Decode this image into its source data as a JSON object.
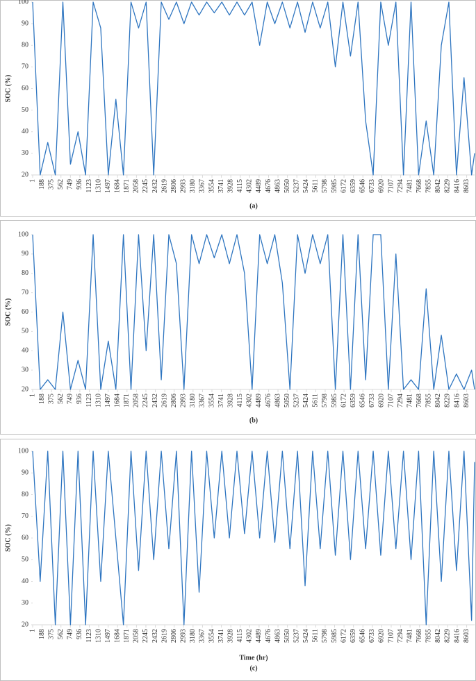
{
  "chart_data": [
    {
      "type": "line",
      "caption": "(a)",
      "ylabel": "SOC (%)",
      "xlim": [
        1,
        8760
      ],
      "ylim": [
        20,
        100
      ],
      "yticks": [
        20,
        30,
        40,
        50,
        60,
        70,
        80,
        90,
        100
      ],
      "xticks": [
        1,
        188,
        375,
        562,
        749,
        936,
        1123,
        1310,
        1497,
        1684,
        1871,
        2058,
        2245,
        2432,
        2619,
        2806,
        2993,
        3180,
        3367,
        3554,
        3741,
        3928,
        4115,
        4302,
        4489,
        4676,
        4863,
        5050,
        5237,
        5424,
        5611,
        5798,
        5985,
        6172,
        6359,
        6546,
        6733,
        6920,
        7107,
        7294,
        7481,
        7668,
        7855,
        8042,
        8229,
        8416,
        8603
      ],
      "series": [
        {
          "color": "#2e75c0",
          "x": [
            1,
            150,
            300,
            450,
            600,
            750,
            900,
            1050,
            1200,
            1350,
            1500,
            1650,
            1800,
            1950,
            2100,
            2250,
            2400,
            2550,
            2700,
            2850,
            3000,
            3150,
            3300,
            3450,
            3600,
            3750,
            3900,
            4050,
            4200,
            4350,
            4500,
            4650,
            4800,
            4950,
            5100,
            5250,
            5400,
            5550,
            5700,
            5850,
            6000,
            6150,
            6300,
            6450,
            6600,
            6750,
            6900,
            7050,
            7200,
            7350,
            7500,
            7650,
            7800,
            7950,
            8100,
            8250,
            8400,
            8550,
            8700,
            8760
          ],
          "values": [
            100,
            20,
            35,
            20,
            100,
            25,
            40,
            20,
            100,
            88,
            20,
            55,
            20,
            100,
            88,
            100,
            20,
            100,
            92,
            100,
            90,
            100,
            94,
            100,
            95,
            100,
            94,
            100,
            94,
            100,
            80,
            100,
            90,
            100,
            88,
            100,
            86,
            100,
            88,
            100,
            70,
            100,
            75,
            100,
            45,
            20,
            100,
            80,
            100,
            20,
            100,
            20,
            45,
            20,
            80,
            100,
            20,
            65,
            20,
            30
          ]
        }
      ]
    },
    {
      "type": "line",
      "caption": "(b)",
      "ylabel": "SOC (%)",
      "xlim": [
        1,
        8760
      ],
      "ylim": [
        20,
        100
      ],
      "yticks": [
        20,
        30,
        40,
        50,
        60,
        70,
        80,
        90,
        100
      ],
      "xticks": [
        1,
        188,
        375,
        562,
        749,
        936,
        1123,
        1310,
        1497,
        1684,
        1871,
        2058,
        2245,
        2432,
        2619,
        2806,
        2993,
        3180,
        3367,
        3554,
        3741,
        3928,
        4115,
        4302,
        4489,
        4676,
        4863,
        5050,
        5237,
        5424,
        5611,
        5798,
        5985,
        6172,
        6359,
        6546,
        6733,
        6920,
        7107,
        7294,
        7481,
        7668,
        7855,
        8042,
        8229,
        8416,
        8603
      ],
      "series": [
        {
          "color": "#2e75c0",
          "x": [
            1,
            150,
            300,
            450,
            600,
            750,
            900,
            1050,
            1200,
            1350,
            1500,
            1650,
            1800,
            1950,
            2100,
            2250,
            2400,
            2550,
            2700,
            2850,
            3000,
            3150,
            3300,
            3450,
            3600,
            3750,
            3900,
            4050,
            4200,
            4350,
            4500,
            4650,
            4800,
            4950,
            5100,
            5250,
            5400,
            5550,
            5700,
            5850,
            6000,
            6150,
            6300,
            6450,
            6600,
            6750,
            6900,
            7050,
            7200,
            7350,
            7500,
            7650,
            7800,
            7950,
            8100,
            8250,
            8400,
            8550,
            8700,
            8760
          ],
          "values": [
            100,
            20,
            25,
            20,
            60,
            20,
            35,
            20,
            100,
            20,
            45,
            20,
            100,
            20,
            100,
            40,
            100,
            25,
            100,
            85,
            20,
            100,
            85,
            100,
            88,
            100,
            85,
            100,
            80,
            20,
            100,
            85,
            100,
            75,
            20,
            100,
            80,
            100,
            85,
            100,
            20,
            100,
            20,
            100,
            25,
            100,
            100,
            20,
            90,
            20,
            25,
            20,
            72,
            20,
            48,
            20,
            28,
            20,
            30,
            20
          ]
        }
      ]
    },
    {
      "type": "line",
      "caption": "(c)",
      "ylabel": "SOC (%)",
      "xlabel": "Time (hr)",
      "xlim": [
        1,
        8760
      ],
      "ylim": [
        20,
        100
      ],
      "yticks": [
        20,
        30,
        40,
        50,
        60,
        70,
        80,
        90,
        100
      ],
      "xticks": [
        1,
        188,
        375,
        562,
        749,
        936,
        1123,
        1310,
        1497,
        1684,
        1871,
        2058,
        2245,
        2432,
        2619,
        2806,
        2993,
        3180,
        3367,
        3554,
        3741,
        3928,
        4115,
        4302,
        4489,
        4676,
        4863,
        5050,
        5237,
        5424,
        5611,
        5798,
        5985,
        6172,
        6359,
        6546,
        6733,
        6920,
        7107,
        7294,
        7481,
        7668,
        7855,
        8042,
        8229,
        8416,
        8603
      ],
      "series": [
        {
          "color": "#2e75c0",
          "x": [
            1,
            150,
            300,
            450,
            600,
            750,
            900,
            1050,
            1200,
            1350,
            1500,
            1650,
            1800,
            1950,
            2100,
            2250,
            2400,
            2550,
            2700,
            2850,
            3000,
            3150,
            3300,
            3450,
            3600,
            3750,
            3900,
            4050,
            4200,
            4350,
            4500,
            4650,
            4800,
            4950,
            5100,
            5250,
            5400,
            5550,
            5700,
            5850,
            6000,
            6150,
            6300,
            6450,
            6600,
            6750,
            6900,
            7050,
            7200,
            7350,
            7500,
            7650,
            7800,
            7950,
            8100,
            8250,
            8400,
            8550,
            8700,
            8760
          ],
          "values": [
            100,
            40,
            100,
            20,
            100,
            20,
            100,
            20,
            100,
            40,
            100,
            60,
            20,
            100,
            45,
            100,
            50,
            100,
            55,
            100,
            20,
            100,
            35,
            100,
            60,
            100,
            60,
            100,
            62,
            100,
            60,
            100,
            58,
            100,
            55,
            100,
            38,
            100,
            55,
            100,
            52,
            100,
            50,
            100,
            55,
            100,
            52,
            100,
            55,
            100,
            50,
            100,
            20,
            100,
            40,
            100,
            45,
            100,
            22,
            95
          ]
        }
      ]
    }
  ]
}
